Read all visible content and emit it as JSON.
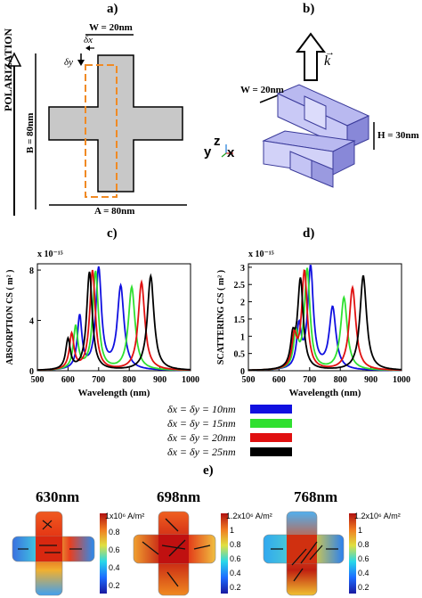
{
  "panel_a": {
    "label": "a)",
    "polarization_label": "POLARIZATION",
    "w_label": "W = 20nm",
    "b_label": "B = 80nm",
    "a_label": "A = 80nm",
    "delta_x": "δx",
    "delta_y": "δy"
  },
  "panel_b": {
    "label": "b)",
    "k_label": "k",
    "w_label": "W = 20nm",
    "h_label": "H = 30nm",
    "axis_y": "y",
    "axis_z": "z",
    "axis_x": "x"
  },
  "panel_c_label": "c)",
  "panel_d_label": "d)",
  "panel_e_label": "e)",
  "legend": [
    {
      "text": "δx = δy = 10nm",
      "color": "#1010e0"
    },
    {
      "text": "δx = δy = 15nm",
      "color": "#30e030"
    },
    {
      "text": "δx = δy = 20nm",
      "color": "#e01010"
    },
    {
      "text": "δx = δy = 25nm",
      "color": "#000000"
    }
  ],
  "chart_data": [
    {
      "type": "line",
      "xlabel": "Wavelength (nm)",
      "ylabel": "ABSORPTION CS ( m² )",
      "exponent": "x 10⁻¹⁵",
      "xlim": [
        500,
        1000
      ],
      "ylim": [
        0,
        8.5
      ],
      "xticks": [
        500,
        600,
        700,
        800,
        900,
        1000
      ],
      "yticks": [
        0,
        4,
        8
      ],
      "series": [
        {
          "name": "δx = δy = 10nm",
          "color": "#1010e0",
          "peaks": [
            [
              638,
              4.2
            ],
            [
              700,
              8.0
            ],
            [
              772,
              6.6
            ]
          ]
        },
        {
          "name": "δx = δy = 15nm",
          "color": "#30e030",
          "peaks": [
            [
              625,
              3.4
            ],
            [
              690,
              7.8
            ],
            [
              808,
              6.6
            ]
          ]
        },
        {
          "name": "δx = δy = 20nm",
          "color": "#e01010",
          "peaks": [
            [
              612,
              2.8
            ],
            [
              680,
              7.9
            ],
            [
              840,
              7.0
            ]
          ]
        },
        {
          "name": "δx = δy = 25nm",
          "color": "#000000",
          "peaks": [
            [
              600,
              2.4
            ],
            [
              670,
              7.8
            ],
            [
              870,
              7.5
            ]
          ]
        }
      ]
    },
    {
      "type": "line",
      "xlabel": "Wavelength (nm)",
      "ylabel": "SCATTERING CS ( m² )",
      "exponent": "x 10⁻¹⁵",
      "xlim": [
        500,
        1000
      ],
      "ylim": [
        0,
        3.1
      ],
      "xticks": [
        500,
        600,
        700,
        800,
        900,
        1000
      ],
      "yticks": [
        0,
        0.5,
        1,
        1.5,
        2,
        2.5,
        3
      ],
      "series": [
        {
          "name": "δx = δy = 10nm",
          "color": "#1010e0",
          "peaks": [
            [
              665,
              1.2
            ],
            [
              703,
              2.95
            ],
            [
              775,
              1.8
            ]
          ]
        },
        {
          "name": "δx = δy = 15nm",
          "color": "#30e030",
          "peaks": [
            [
              655,
              1.0
            ],
            [
              692,
              2.9
            ],
            [
              812,
              2.1
            ]
          ]
        },
        {
          "name": "δx = δy = 20nm",
          "color": "#e01010",
          "peaks": [
            [
              650,
              0.9
            ],
            [
              683,
              2.85
            ],
            [
              840,
              2.4
            ]
          ]
        },
        {
          "name": "δx = δy = 25nm",
          "color": "#000000",
          "peaks": [
            [
              645,
              0.8
            ],
            [
              670,
              2.6
            ],
            [
              875,
              2.75
            ]
          ]
        }
      ]
    }
  ],
  "field_maps": [
    {
      "title": "630nm",
      "cbar_top": "1x10⁶ A/m²",
      "ticks": [
        "0.8",
        "0.6",
        "0.4",
        "0.2"
      ]
    },
    {
      "title": "698nm",
      "cbar_top": "1.2x10⁶ A/m²",
      "ticks": [
        "1",
        "0.8",
        "0.6",
        "0.4",
        "0.2"
      ]
    },
    {
      "title": "768nm",
      "cbar_top": "1.2x10⁶ A/m²",
      "ticks": [
        "1",
        "0.8",
        "0.6",
        "0.4",
        "0.2"
      ]
    }
  ]
}
